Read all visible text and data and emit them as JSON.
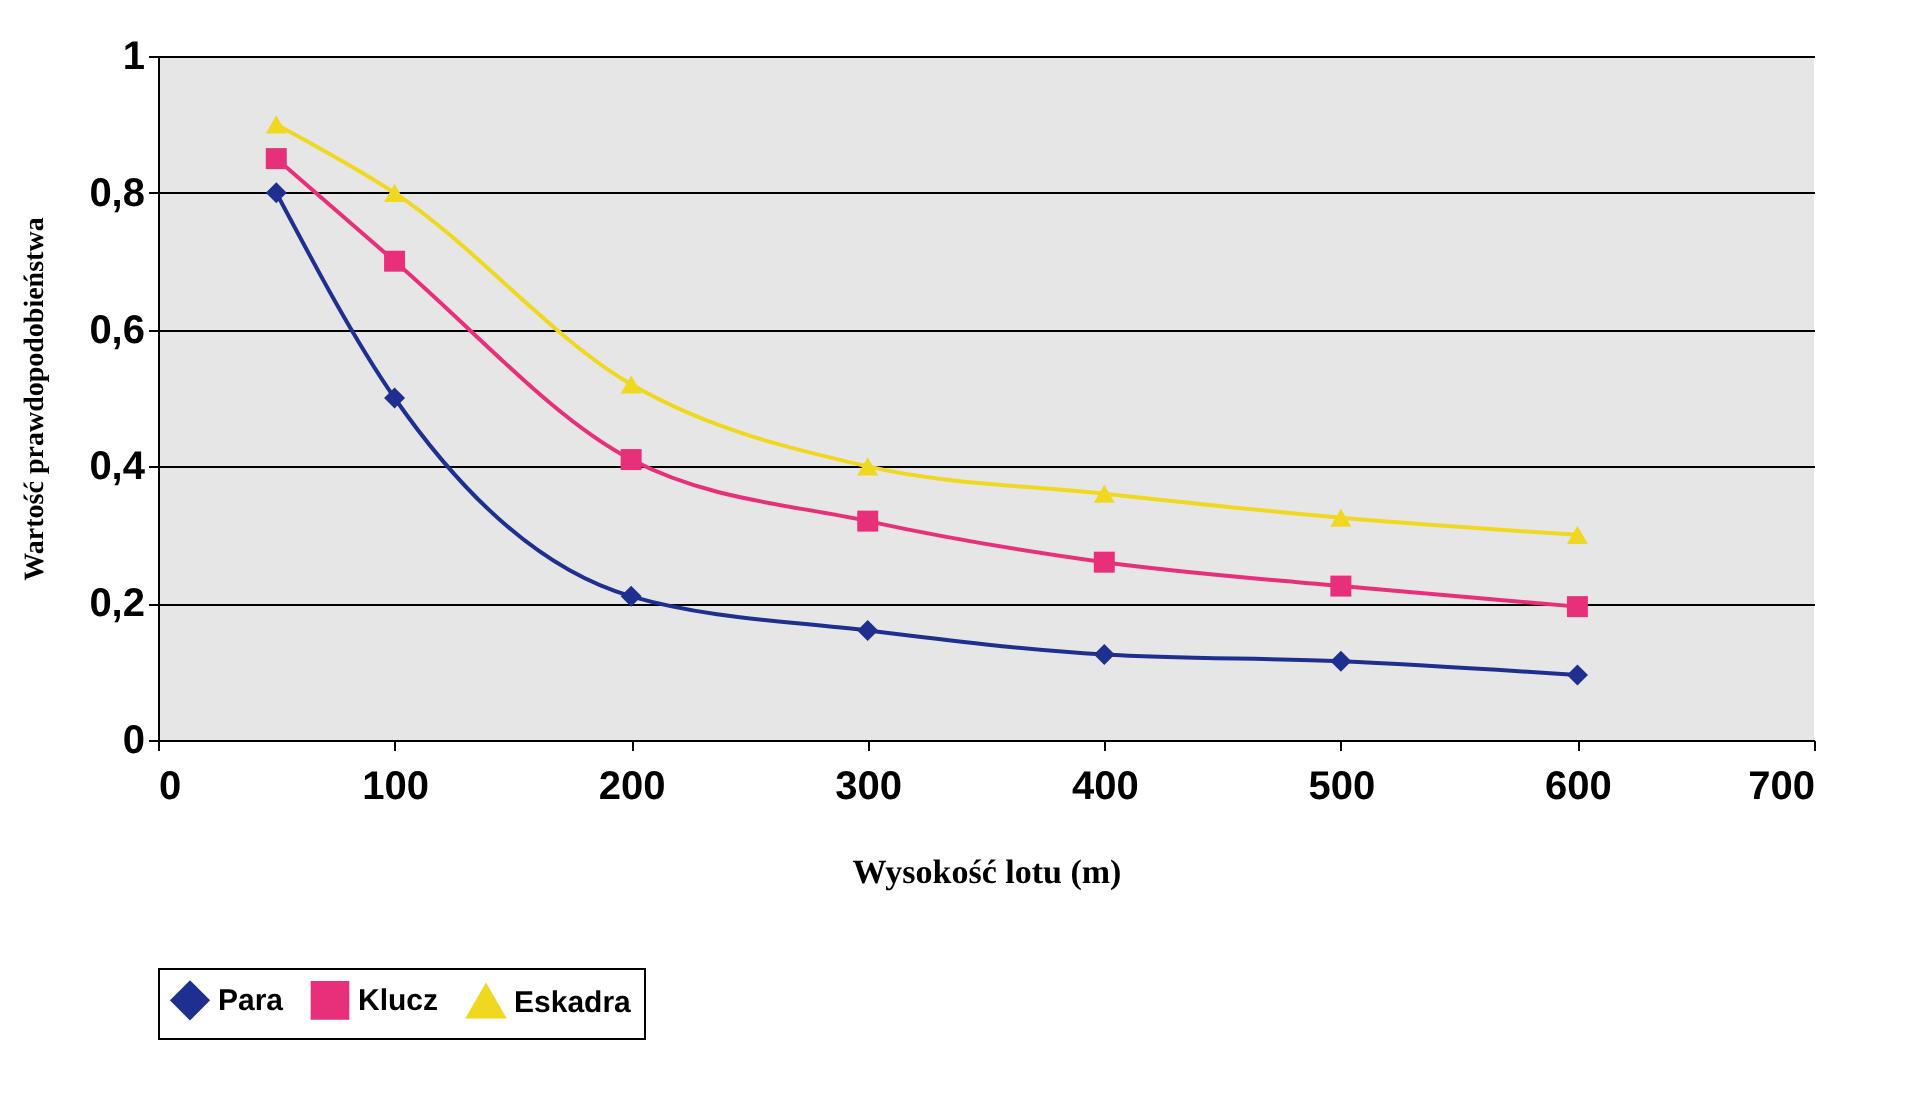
{
  "chart_data": {
    "type": "line",
    "xlabel": "Wysokość lotu (m)",
    "ylabel": "Wartość prawdopodobieństwa",
    "x": [
      50,
      100,
      200,
      300,
      400,
      500,
      600
    ],
    "series": [
      {
        "name": "Para",
        "color": "#1f2f8f",
        "marker": "diamond",
        "values": [
          0.8,
          0.5,
          0.21,
          0.16,
          0.125,
          0.115,
          0.095
        ]
      },
      {
        "name": "Klucz",
        "color": "#e8307a",
        "marker": "square",
        "values": [
          0.85,
          0.7,
          0.41,
          0.32,
          0.26,
          0.225,
          0.195
        ]
      },
      {
        "name": "Eskadra",
        "color": "#f0d820",
        "marker": "triangle",
        "values": [
          0.9,
          0.8,
          0.52,
          0.4,
          0.36,
          0.325,
          0.3
        ]
      }
    ],
    "xlim": [
      0,
      700
    ],
    "xticks": [
      0,
      100,
      200,
      300,
      400,
      500,
      600,
      700
    ],
    "ylim": [
      0,
      1
    ],
    "yticks": [
      0,
      {
        "value": 0.2,
        "label": "0,2"
      },
      {
        "value": 0.4,
        "label": "0,4"
      },
      {
        "value": 0.6,
        "label": "0,6"
      },
      {
        "value": 0.8,
        "label": "0,8"
      },
      1
    ],
    "grid": "y",
    "legend": "bottom",
    "line_style": "solid"
  }
}
